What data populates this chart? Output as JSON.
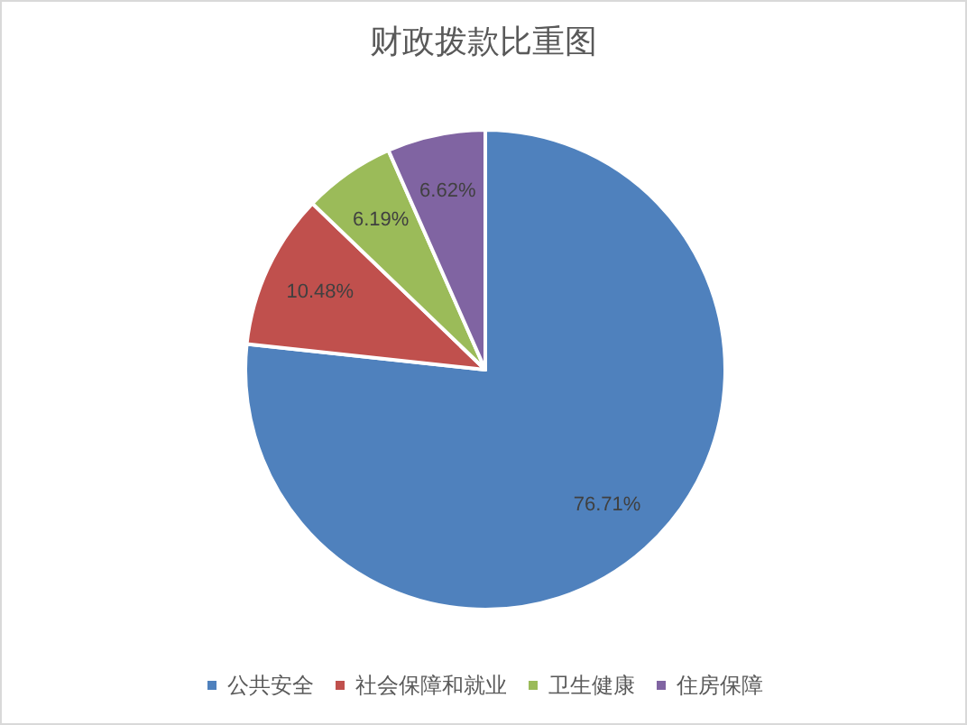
{
  "chart_data": {
    "type": "pie",
    "title": "财政拨款比重图",
    "categories": [
      "公共安全",
      "社会保障和就业",
      "卫生健康",
      "住房保障"
    ],
    "values": [
      76.71,
      10.48,
      6.19,
      6.62
    ],
    "colors": [
      "#4f81bd",
      "#c0504d",
      "#9bbb59",
      "#8064a2"
    ],
    "value_labels": [
      "76.71%",
      "10.48%",
      "6.19%",
      "6.62%"
    ],
    "legend": "bottom"
  }
}
